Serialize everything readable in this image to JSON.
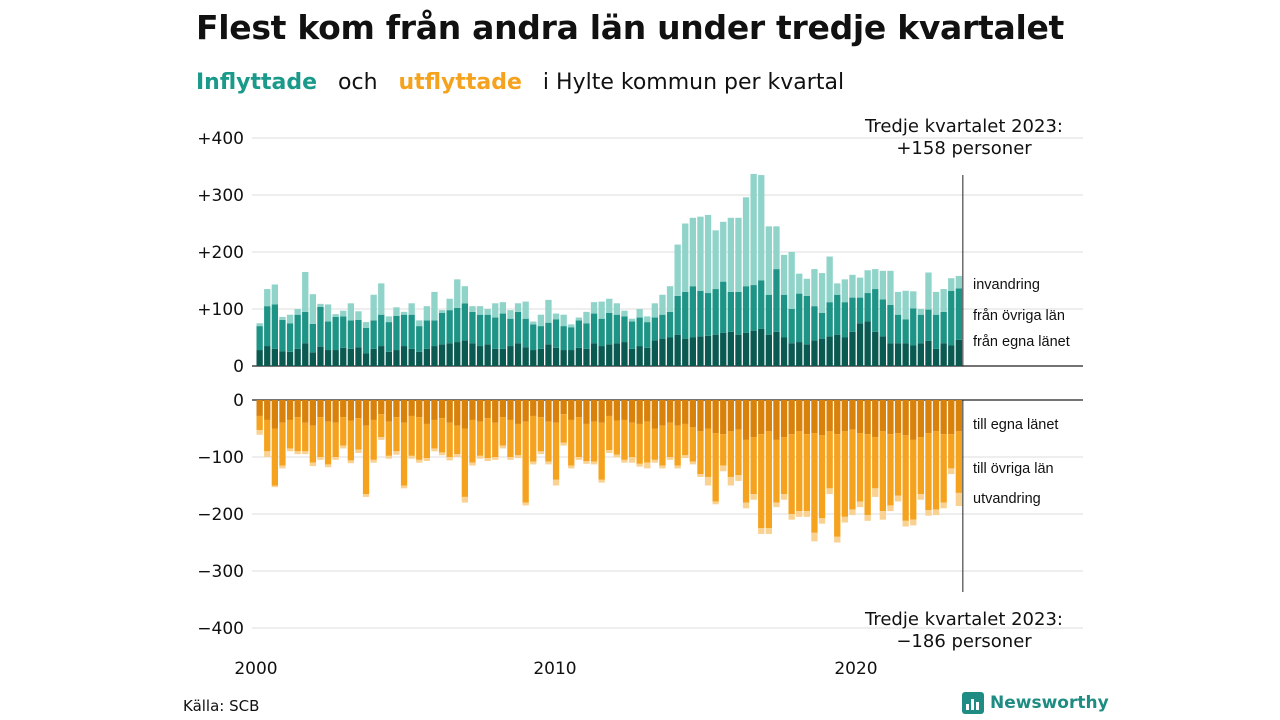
{
  "title": "Flest kom från andra län under tredje kvartalet",
  "subtitle": {
    "part1": "Inflyttade",
    "part2": "och",
    "part3": "utflyttade",
    "part4": "i Hylte  kommun  per  kvartal"
  },
  "source": "Källa: SCB",
  "brand": "Newsworthy",
  "colors": {
    "in_lan": "#0b5a52",
    "in_ovriga": "#1d9485",
    "in_invandring": "#8fd3c9",
    "ut_lan": "#d9820b",
    "ut_ovriga": "#f5a21e",
    "ut_utvandring": "#f9d292"
  },
  "chart_data": {
    "type": "bar",
    "x_start": "2000 Q1",
    "x_ticks": [
      "2000",
      "2010",
      "2020"
    ],
    "yticks_top": [
      "+400",
      "+300",
      "+200",
      "+100",
      "0"
    ],
    "yticks_bottom": [
      "0",
      "−100",
      "−200",
      "−300",
      "−400"
    ],
    "ylim_top": [
      0,
      400
    ],
    "ylim_bottom": [
      -400,
      0
    ],
    "annotation_top": [
      "Tredje kvartalet 2023:",
      "+158 personer"
    ],
    "annotation_bottom": [
      "Tredje kvartalet 2023:",
      "−186 personer"
    ],
    "inflow_series": [
      {
        "name": "från egna länet",
        "values": [
          28,
          35,
          30,
          26,
          25,
          30,
          40,
          24,
          34,
          28,
          28,
          32,
          30,
          33,
          22,
          30,
          35,
          25,
          28,
          35,
          30,
          25,
          30,
          35,
          38,
          40,
          42,
          45,
          40,
          35,
          38,
          30,
          30,
          35,
          40,
          33,
          28,
          30,
          38,
          32,
          28,
          28,
          32,
          30,
          40,
          35,
          38,
          40,
          42,
          30,
          35,
          32,
          45,
          48,
          50,
          55,
          48,
          50,
          52,
          53,
          55,
          58,
          60,
          55,
          58,
          62,
          65,
          55,
          60,
          50,
          40,
          42,
          38,
          45,
          48,
          52,
          55,
          50,
          60,
          75,
          78,
          60,
          52,
          40,
          40,
          40,
          36,
          40,
          44,
          30,
          40,
          36,
          46
        ]
      },
      {
        "name": "från övriga län",
        "values": [
          42,
          70,
          78,
          55,
          50,
          60,
          55,
          50,
          70,
          50,
          58,
          55,
          50,
          48,
          45,
          50,
          55,
          52,
          60,
          55,
          60,
          45,
          50,
          45,
          55,
          58,
          60,
          65,
          55,
          55,
          52,
          55,
          62,
          48,
          55,
          50,
          45,
          40,
          38,
          50,
          42,
          40,
          48,
          45,
          52,
          48,
          55,
          50,
          45,
          48,
          50,
          45,
          40,
          42,
          45,
          68,
          82,
          90,
          80,
          75,
          80,
          90,
          70,
          75,
          82,
          80,
          85,
          70,
          110,
          75,
          60,
          85,
          85,
          60,
          45,
          60,
          70,
          62,
          60,
          45,
          50,
          75,
          65,
          67,
          50,
          42,
          65,
          50,
          55,
          60,
          55,
          96,
          90
        ]
      },
      {
        "name": "invandring",
        "values": [
          5,
          30,
          35,
          5,
          15,
          10,
          70,
          52,
          5,
          30,
          5,
          10,
          30,
          15,
          10,
          45,
          55,
          10,
          15,
          5,
          20,
          10,
          25,
          50,
          5,
          20,
          50,
          30,
          10,
          15,
          10,
          25,
          20,
          15,
          15,
          30,
          5,
          20,
          40,
          10,
          20,
          5,
          5,
          20,
          20,
          30,
          25,
          20,
          10,
          5,
          15,
          10,
          25,
          35,
          45,
          90,
          120,
          120,
          130,
          137,
          103,
          105,
          130,
          130,
          156,
          195,
          185,
          120,
          75,
          70,
          100,
          35,
          30,
          65,
          70,
          80,
          20,
          40,
          40,
          35,
          40,
          35,
          50,
          60,
          40,
          50,
          30,
          10,
          65,
          40,
          40,
          22,
          22
        ]
      }
    ],
    "outflow_series": [
      {
        "name": "till egna länet",
        "values": [
          28,
          35,
          50,
          40,
          35,
          30,
          40,
          45,
          30,
          38,
          40,
          30,
          36,
          32,
          45,
          35,
          25,
          38,
          30,
          40,
          28,
          30,
          42,
          35,
          32,
          40,
          45,
          50,
          35,
          38,
          32,
          40,
          30,
          35,
          42,
          38,
          28,
          30,
          38,
          40,
          25,
          35,
          30,
          42,
          38,
          40,
          28,
          36,
          35,
          40,
          42,
          38,
          50,
          45,
          40,
          45,
          42,
          48,
          55,
          50,
          58,
          60,
          55,
          52,
          70,
          65,
          60,
          55,
          70,
          65,
          60,
          55,
          60,
          58,
          62,
          55,
          60,
          55,
          52,
          58,
          60,
          65,
          55,
          60,
          58,
          62,
          70,
          65,
          58,
          55,
          60,
          60,
          55
        ]
      },
      {
        "name": "till övriga län",
        "values": [
          25,
          55,
          100,
          75,
          50,
          60,
          50,
          65,
          70,
          75,
          60,
          50,
          70,
          55,
          120,
          70,
          40,
          60,
          60,
          110,
          70,
          75,
          60,
          50,
          60,
          60,
          50,
          120,
          75,
          60,
          70,
          60,
          50,
          65,
          55,
          142,
          80,
          60,
          70,
          100,
          50,
          80,
          70,
          65,
          70,
          100,
          60,
          60,
          70,
          60,
          70,
          72,
          55,
          70,
          60,
          70,
          55,
          60,
          75,
          85,
          120,
          55,
          80,
          80,
          110,
          100,
          165,
          170,
          110,
          100,
          140,
          140,
          135,
          175,
          145,
          100,
          180,
          150,
          140,
          120,
          142,
          90,
          140,
          125,
          110,
          150,
          140,
          100,
          135,
          137,
          120,
          60,
          108
        ]
      },
      {
        "name": "utvandring",
        "values": [
          8,
          10,
          3,
          5,
          5,
          5,
          5,
          6,
          5,
          5,
          5,
          5,
          5,
          6,
          5,
          5,
          5,
          5,
          6,
          5,
          5,
          5,
          5,
          5,
          5,
          6,
          5,
          10,
          5,
          5,
          5,
          5,
          5,
          5,
          5,
          5,
          5,
          5,
          5,
          10,
          5,
          5,
          5,
          5,
          5,
          5,
          5,
          5,
          5,
          10,
          5,
          10,
          5,
          5,
          5,
          5,
          5,
          5,
          5,
          15,
          5,
          10,
          15,
          10,
          10,
          10,
          10,
          10,
          8,
          10,
          10,
          10,
          10,
          15,
          10,
          10,
          10,
          10,
          10,
          10,
          10,
          15,
          15,
          10,
          10,
          10,
          10,
          10,
          10,
          10,
          10,
          10,
          23
        ]
      }
    ]
  }
}
